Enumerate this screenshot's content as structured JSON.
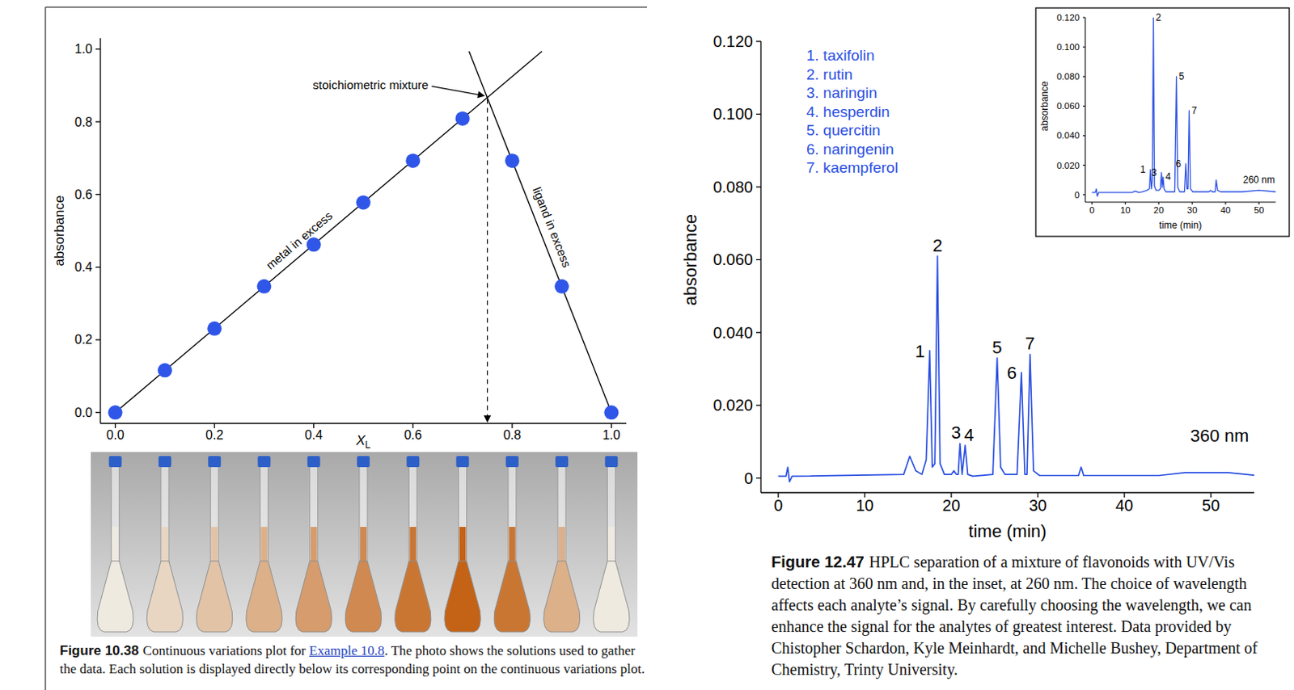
{
  "chart_data": [
    {
      "type": "scatter",
      "xlabel": {
        "text": "X",
        "subscript": "L"
      },
      "ylabel": "absorbance",
      "x": [
        0,
        0.1,
        0.2,
        0.3,
        0.4,
        0.5,
        0.6,
        0.7,
        0.8,
        0.9,
        1.0
      ],
      "values": [
        0,
        0.116,
        0.231,
        0.347,
        0.462,
        0.578,
        0.693,
        0.809,
        0.693,
        0.347,
        0
      ],
      "color": "#2f56e8",
      "marker": "circle",
      "xlim": [
        -0.03,
        1.03
      ],
      "ylim": [
        -0.03,
        1.03
      ],
      "xticks": [
        {
          "value": 0,
          "label": "0.0"
        },
        0.2,
        0.4,
        0.6,
        0.8,
        {
          "value": 1,
          "label": "1.0"
        }
      ],
      "yticks": [
        {
          "value": 0,
          "label": "0.0"
        },
        0.2,
        0.4,
        0.6,
        0.8,
        {
          "value": 1,
          "label": "1.0"
        }
      ],
      "lines": [
        {
          "type": "line",
          "label": "metal in excess",
          "x": [
            0,
            0.86
          ],
          "values": [
            0,
            0.994
          ],
          "color": "#000000"
        },
        {
          "type": "line",
          "label": "ligand in excess",
          "x": [
            0.713,
            1.0
          ],
          "values": [
            0.994,
            0
          ],
          "color": "#000000"
        }
      ],
      "annotations": [
        {
          "text": "stoichiometric mixture",
          "x": 0.75,
          "y": 0.867
        }
      ]
    },
    {
      "type": "line",
      "xlabel": "time (min)",
      "ylabel": "absorbance",
      "x": [
        0,
        0.9,
        1.1,
        1.3,
        1.6,
        14.5,
        15.2,
        15.9,
        16.6,
        17.1,
        17.5,
        17.8,
        18.1,
        18.4,
        18.7,
        19.2,
        20.0,
        20.3,
        20.6,
        20.8,
        21.0,
        21.25,
        21.6,
        21.9,
        22.5,
        24.8,
        25.3,
        25.7,
        26.2,
        27.6,
        28.1,
        28.5,
        28.75,
        29.1,
        29.5,
        30.2,
        34.7,
        35.0,
        35.3,
        44,
        47,
        52,
        55
      ],
      "values": [
        0.0005,
        0.0005,
        0.003,
        -0.001,
        0.0005,
        0.001,
        0.006,
        0.002,
        0.001,
        0.005,
        0.035,
        0.003,
        0.004,
        0.061,
        0.004,
        0.001,
        0.001,
        0.002,
        0.001,
        0.001,
        0.0095,
        0.001,
        0.009,
        0.001,
        0.0005,
        0.001,
        0.033,
        0.003,
        0.001,
        0.001,
        0.029,
        0.001,
        0.001,
        0.034,
        0.002,
        0.0007,
        0.0007,
        0.003,
        0.0007,
        0.0007,
        0.0015,
        0.0015,
        0.0008
      ],
      "color": "#2a4fe3",
      "xlim": [
        -2,
        55
      ],
      "ylim": [
        -0.004,
        0.12
      ],
      "xticks": [
        0,
        10,
        20,
        30,
        40,
        50
      ],
      "yticks": [
        0,
        {
          "value": 0.02,
          "label": "0.020"
        },
        {
          "value": 0.04,
          "label": "0.040"
        },
        {
          "value": 0.06,
          "label": "0.060"
        },
        {
          "value": 0.08,
          "label": "0.080"
        },
        {
          "value": 0.1,
          "label": "0.100"
        },
        {
          "value": 0.12,
          "label": "0.120"
        }
      ],
      "key_texts": [
        "1. taxifolin",
        "2. rutin",
        "3. naringin",
        "4. hesperdin",
        "5. quercitin",
        "6. naringenin",
        "7. kaempferol"
      ],
      "peak_labels": [
        {
          "text": "1",
          "x": 17.5,
          "y": 0.035
        },
        {
          "text": "2",
          "x": 18.4,
          "y": 0.061
        },
        {
          "text": "3",
          "x": 21.0,
          "y": 0.0095
        },
        {
          "text": "4",
          "x": 21.6,
          "y": 0.009
        },
        {
          "text": "5",
          "x": 25.3,
          "y": 0.033
        },
        {
          "text": "6",
          "x": 28.1,
          "y": 0.029
        },
        {
          "text": "7",
          "x": 29.1,
          "y": 0.034
        }
      ],
      "annotations": [
        {
          "text": "360 nm",
          "x": 51,
          "y": 0.01
        }
      ]
    },
    {
      "type": "line",
      "xlabel": "time (min)",
      "ylabel": "absorbance",
      "x": [
        0,
        1,
        1.3,
        1.6,
        2,
        12,
        13,
        14,
        15,
        16.5,
        17.2,
        17.5,
        17.8,
        18.1,
        18.4,
        18.7,
        19.2,
        20,
        20.5,
        20.8,
        21.05,
        21.3,
        21.6,
        22.2,
        24.8,
        25.3,
        25.7,
        26.3,
        27.7,
        28.1,
        28.45,
        28.75,
        29.1,
        29.5,
        30.2,
        35,
        35.5,
        36,
        36.9,
        37.2,
        37.6,
        38.5,
        45,
        50,
        55
      ],
      "values": [
        0.0015,
        0.0015,
        0.004,
        -0.001,
        0.0015,
        0.0015,
        0.0025,
        0.0015,
        0.002,
        0.003,
        0.004,
        0.017,
        0.004,
        0.01,
        0.12,
        0.006,
        0.003,
        0.003,
        0.004,
        0.015,
        0.005,
        0.012,
        0.004,
        0.002,
        0.002,
        0.08,
        0.005,
        0.002,
        0.002,
        0.021,
        0.004,
        0.004,
        0.057,
        0.004,
        0.002,
        0.002,
        0.003,
        0.002,
        0.002,
        0.01,
        0.003,
        0.002,
        0.002,
        0.003,
        0.002
      ],
      "color": "#2a4fe3",
      "xlim": [
        -2,
        55
      ],
      "ylim": [
        -0.005,
        0.12
      ],
      "xticks": [
        0,
        10,
        20,
        30,
        40,
        50
      ],
      "yticks": [
        0,
        {
          "value": 0.02,
          "label": "0.020"
        },
        {
          "value": 0.04,
          "label": "0.040"
        },
        {
          "value": 0.06,
          "label": "0.060"
        },
        {
          "value": 0.08,
          "label": "0.080"
        },
        {
          "value": 0.1,
          "label": "0.100"
        },
        {
          "value": 0.12,
          "label": "0.120"
        }
      ],
      "peak_labels": [
        {
          "text": "1",
          "x": 17.5,
          "y": 0.017
        },
        {
          "text": "2",
          "x": 18.4,
          "y": 0.12
        },
        {
          "text": "3",
          "x": 20.8,
          "y": 0.015
        },
        {
          "text": "4",
          "x": 21.3,
          "y": 0.012
        },
        {
          "text": "5",
          "x": 25.3,
          "y": 0.08
        },
        {
          "text": "6",
          "x": 28.1,
          "y": 0.021
        },
        {
          "text": "7",
          "x": 29.1,
          "y": 0.057
        }
      ],
      "annotations": [
        {
          "text": "260 nm",
          "x": 50,
          "y": 0.008
        }
      ]
    }
  ],
  "figures": [
    {
      "label": "Figure 10.38",
      "caption": [
        {
          "text": "Continuous variations plot for "
        },
        {
          "text": "Example 10.8",
          "link": true
        },
        {
          "text": ". The photo shows the solutions used to gather the data. Each solution is displayed directly below its corresponding point on the continuous variations plot."
        }
      ]
    },
    {
      "label": "Figure 12.47",
      "caption": [
        {
          "text": "HPLC separation of a mixture of flavonoids with UV/Vis detection at 360 nm and, in the inset, at 260 nm. The choice of wavelength affects each analyte’s signal. By carefully choosing the wavelength, we can enhance the signal for the analytes of greatest interest. Data provided by Chistopher Schardon, Kyle Meinhardt, and Michelle Bushey, Department of Chemistry, Trinty University."
        }
      ]
    }
  ]
}
